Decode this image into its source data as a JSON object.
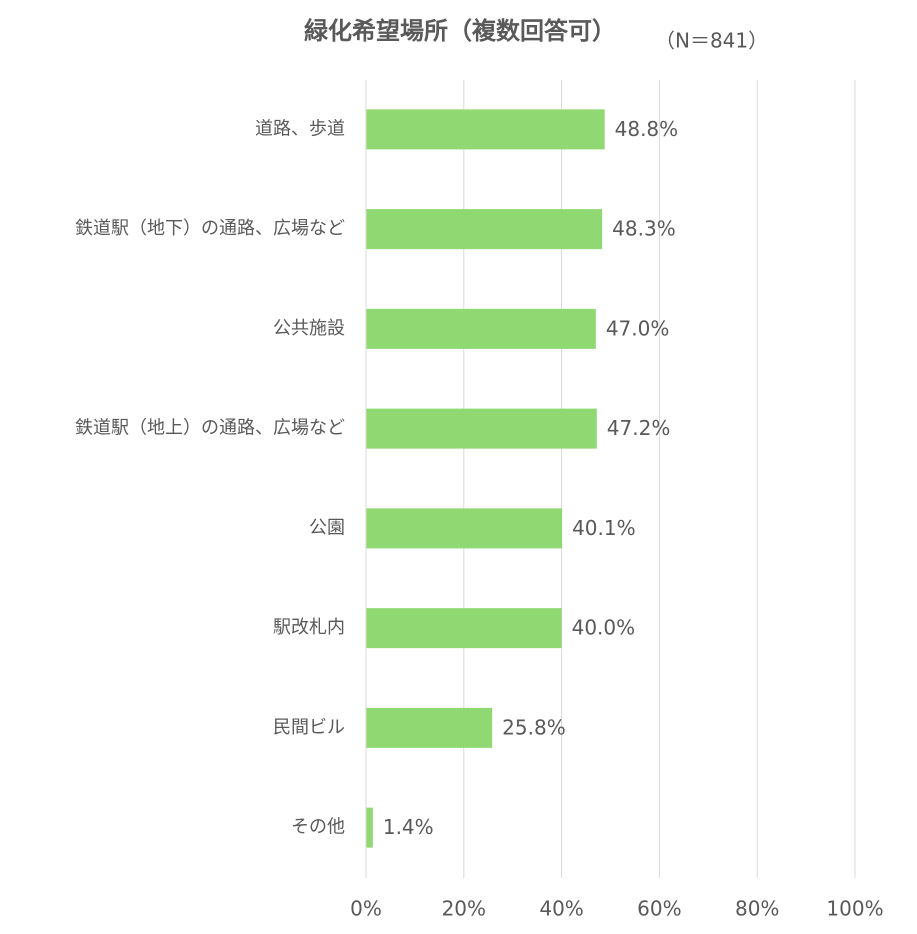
{
  "chart_data": {
    "type": "barh",
    "title": "緑化希望場所（複数回答可）",
    "subtitle": "（N＝841）",
    "categories": [
      "道路、歩道",
      "鉄道駅（地下）の通路、広場など",
      "公共施設",
      "鉄道駅（地上）の通路、広場など",
      "公園",
      "駅改札内",
      "民間ビル",
      "その他"
    ],
    "values": [
      48.8,
      48.3,
      47.0,
      47.2,
      40.1,
      40.0,
      25.8,
      1.4
    ],
    "value_labels": [
      "48.8%",
      "48.3%",
      "47.0%",
      "47.2%",
      "40.1%",
      "40.0%",
      "25.8%",
      "1.4%"
    ],
    "color": "#8fd872",
    "xlim": [
      0,
      100
    ],
    "xticks": [
      {
        "value": 0,
        "label": "0%"
      },
      {
        "value": 20,
        "label": "20%"
      },
      {
        "value": 40,
        "label": "40%"
      },
      {
        "value": 60,
        "label": "60%"
      },
      {
        "value": 80,
        "label": "80%"
      },
      {
        "value": 100,
        "label": "100%"
      }
    ],
    "grid": true
  }
}
